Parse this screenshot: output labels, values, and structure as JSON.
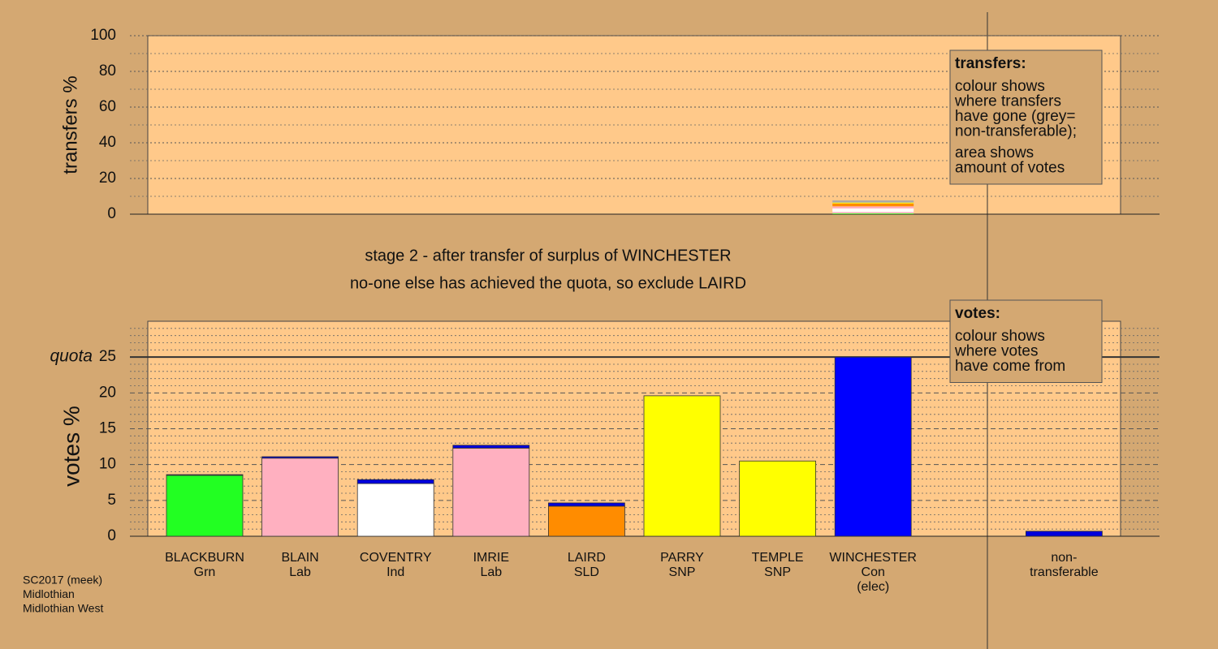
{
  "chart_data": [
    {
      "type": "stacked-bar",
      "ylabel": "transfers %",
      "ylim": [
        0,
        100
      ],
      "yticks": [
        0,
        20,
        40,
        60,
        80,
        100
      ],
      "minor_yticks": [
        10,
        30,
        50,
        70,
        90
      ],
      "slots": 10,
      "series": [
        {
          "color": "#22ff22",
          "values": [
            null,
            null,
            null,
            null,
            null,
            null,
            null,
            0.4,
            null,
            null
          ]
        },
        {
          "color": "#ffb0c0",
          "values": [
            null,
            null,
            null,
            null,
            null,
            null,
            null,
            0.8,
            null,
            null
          ]
        },
        {
          "color": "#ffffff",
          "values": [
            null,
            null,
            null,
            null,
            null,
            null,
            null,
            2.0,
            null,
            null
          ]
        },
        {
          "color": "#ffb0c0",
          "values": [
            null,
            null,
            null,
            null,
            null,
            null,
            null,
            1.2,
            null,
            null
          ]
        },
        {
          "color": "#ff8c00",
          "values": [
            null,
            null,
            null,
            null,
            null,
            null,
            null,
            1.6,
            null,
            null
          ]
        },
        {
          "color": "#ffff00",
          "values": [
            null,
            null,
            null,
            null,
            null,
            null,
            null,
            0.3,
            null,
            null
          ]
        },
        {
          "color": "#ffff00",
          "values": [
            null,
            null,
            null,
            null,
            null,
            null,
            null,
            0.2,
            null,
            null
          ]
        },
        {
          "color": "#aaaaaa",
          "values": [
            null,
            null,
            null,
            null,
            null,
            null,
            null,
            1.2,
            null,
            null
          ]
        }
      ],
      "annotation": {
        "heading": "transfers:",
        "paragraphs": [
          [
            "colour shows",
            "where transfers",
            "have gone (grey=",
            "non-transferable);"
          ],
          [
            "area shows",
            "amount of votes"
          ]
        ]
      }
    },
    {
      "type": "stacked-bar",
      "title": "stage 2 - after transfer of surplus of WINCHESTER",
      "subtitle": "no-one else has achieved the quota, so exclude LAIRD",
      "ylabel": "votes %",
      "ylim": [
        0,
        30
      ],
      "yticks": [
        0,
        5,
        10,
        15,
        20,
        25
      ],
      "minor_yticks": [
        1,
        2,
        3,
        4,
        6,
        7,
        8,
        9,
        11,
        12,
        13,
        14,
        16,
        17,
        18,
        19,
        21,
        22,
        23,
        24,
        26,
        27,
        28,
        29
      ],
      "quota": {
        "label": "quota",
        "value": 25
      },
      "categories": [
        [
          "BLACKBURN",
          "Grn"
        ],
        [
          "BLAIN",
          "Lab"
        ],
        [
          "COVENTRY",
          "Ind"
        ],
        [
          "IMRIE",
          "Lab"
        ],
        [
          "LAIRD",
          "SLD"
        ],
        [
          "PARRY",
          "SNP"
        ],
        [
          "TEMPLE",
          "SNP"
        ],
        [
          "WINCHESTER",
          "Con",
          "(elec)"
        ],
        null,
        [
          "non-",
          "transferable"
        ]
      ],
      "series": [
        {
          "colors": [
            "#22ff22",
            "#ffb0c0",
            "#ffffff",
            "#ffb0c0",
            "#ff8c00",
            "#ffff00",
            "#ffff00",
            "#0000ff",
            null,
            null
          ],
          "values": [
            8.5,
            10.9,
            7.35,
            12.3,
            4.2,
            19.6,
            10.5,
            25.0,
            null,
            null
          ]
        },
        {
          "color": "#0000dd",
          "values": [
            0.1,
            0.2,
            0.55,
            0.4,
            0.45,
            null,
            null,
            null,
            null,
            0.7
          ]
        }
      ],
      "annotation": {
        "heading": "votes:",
        "paragraphs": [
          [
            "colour shows",
            "where votes",
            "have come from"
          ]
        ]
      }
    }
  ],
  "footer": [
    "SC2017 (meek)",
    "Midlothian",
    "Midlothian West"
  ]
}
